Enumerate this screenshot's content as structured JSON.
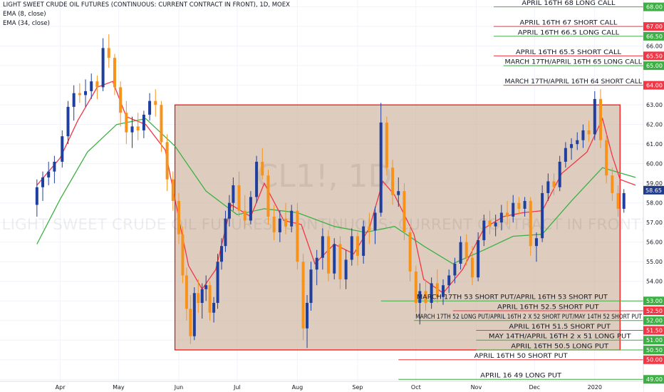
{
  "header": {
    "title": "LIGHT SWEET CRUDE OIL FUTURES (CONTINUOUS: CURRENT CONTRACT IN FRONT), 1D, MOEX",
    "ema_fast": "EMA (8, close)",
    "ema_slow": "EMA (34, close)"
  },
  "watermark": {
    "symbol": "CL1!, 1D",
    "name": "LIGHT SWEET CRUDE OIL FUTURES (CONTINUOUS: CURRENT CONTRACT IN FRONT)"
  },
  "chart_data": {
    "type": "candlestick",
    "x_labels": [
      "Apr",
      "May",
      "Jun",
      "Jul",
      "Aug",
      "Sep",
      "Oct",
      "Nov",
      "Dec",
      "2020"
    ],
    "y_ticks": [
      49.0,
      50.0,
      50.5,
      51.0,
      51.5,
      52.0,
      52.5,
      53.0,
      54.0,
      55.0,
      56.0,
      57.0,
      58.0,
      58.65,
      59.0,
      60.0,
      61.0,
      62.0,
      63.0,
      64.0,
      65.0,
      65.5,
      66.0,
      66.5,
      67.0,
      68.0
    ],
    "ylim": [
      48.9,
      68.35
    ],
    "last_price": 58.65,
    "range_box": {
      "x_start": "2019-05-30",
      "x_end": "2020-01-14",
      "y_low": 50.5,
      "y_high": 63.0
    },
    "colors": {
      "up": "#1f3f9e",
      "down": "#f7931a",
      "ema_fast": "#f23645",
      "ema_slow": "#3cb043",
      "box": "#c8b09a",
      "box_border": "#ff0000",
      "green_line": "#3cb043",
      "red_line": "#f23645"
    },
    "series": [
      {
        "name": "EMA (8, close)",
        "points": [
          [
            "2019-03-20",
            58.9
          ],
          [
            "2019-04-01",
            60.3
          ],
          [
            "2019-04-10",
            62.2
          ],
          [
            "2019-04-20",
            63.9
          ],
          [
            "2019-04-28",
            64.2
          ],
          [
            "2019-05-05",
            62.4
          ],
          [
            "2019-05-15",
            62.0
          ],
          [
            "2019-05-25",
            60.7
          ],
          [
            "2019-06-01",
            57.2
          ],
          [
            "2019-06-06",
            54.8
          ],
          [
            "2019-06-13",
            53.6
          ],
          [
            "2019-06-20",
            54.6
          ],
          [
            "2019-06-28",
            57.9
          ],
          [
            "2019-07-08",
            57.3
          ],
          [
            "2019-07-15",
            59.0
          ],
          [
            "2019-07-25",
            57.1
          ],
          [
            "2019-08-03",
            56.9
          ],
          [
            "2019-08-10",
            54.9
          ],
          [
            "2019-08-20",
            55.9
          ],
          [
            "2019-08-30",
            55.4
          ],
          [
            "2019-09-07",
            56.7
          ],
          [
            "2019-09-14",
            59.1
          ],
          [
            "2019-09-20",
            58.4
          ],
          [
            "2019-09-30",
            56.4
          ],
          [
            "2019-10-05",
            54.1
          ],
          [
            "2019-10-15",
            53.4
          ],
          [
            "2019-10-25",
            54.6
          ],
          [
            "2019-11-05",
            56.7
          ],
          [
            "2019-11-15",
            57.3
          ],
          [
            "2019-11-25",
            57.5
          ],
          [
            "2019-12-05",
            57.6
          ],
          [
            "2019-12-15",
            59.5
          ],
          [
            "2019-12-28",
            60.6
          ],
          [
            "2020-01-05",
            62.3
          ],
          [
            "2020-01-10",
            60.4
          ],
          [
            "2020-01-14",
            59.2
          ],
          [
            "2020-01-22",
            58.9
          ]
        ]
      },
      {
        "name": "EMA (34, close)",
        "points": [
          [
            "2019-03-20",
            55.9
          ],
          [
            "2019-04-01",
            58.2
          ],
          [
            "2019-04-15",
            60.6
          ],
          [
            "2019-04-30",
            62.0
          ],
          [
            "2019-05-15",
            62.3
          ],
          [
            "2019-05-30",
            60.9
          ],
          [
            "2019-06-15",
            58.6
          ],
          [
            "2019-07-01",
            57.4
          ],
          [
            "2019-07-15",
            57.7
          ],
          [
            "2019-08-01",
            57.5
          ],
          [
            "2019-08-20",
            56.8
          ],
          [
            "2019-09-05",
            56.5
          ],
          [
            "2019-09-20",
            56.8
          ],
          [
            "2019-10-05",
            55.8
          ],
          [
            "2019-10-20",
            54.9
          ],
          [
            "2019-11-05",
            55.6
          ],
          [
            "2019-11-20",
            56.3
          ],
          [
            "2019-12-05",
            56.4
          ],
          [
            "2019-12-20",
            58.1
          ],
          [
            "2020-01-05",
            59.8
          ],
          [
            "2020-01-15",
            59.5
          ],
          [
            "2020-01-22",
            59.3
          ]
        ]
      }
    ],
    "candles": [
      [
        "2019-03-20",
        57.9,
        59.2,
        57.3,
        58.8
      ],
      [
        "2019-03-23",
        58.8,
        59.6,
        58.1,
        59.3
      ],
      [
        "2019-03-26",
        59.3,
        60.1,
        58.9,
        59.6
      ],
      [
        "2019-03-29",
        59.6,
        60.4,
        59.0,
        60.1
      ],
      [
        "2019-04-02",
        60.1,
        61.7,
        59.8,
        61.4
      ],
      [
        "2019-04-05",
        61.4,
        63.2,
        61.0,
        62.9
      ],
      [
        "2019-04-08",
        62.9,
        64.0,
        62.2,
        63.6
      ],
      [
        "2019-04-11",
        63.6,
        64.1,
        63.1,
        63.5
      ],
      [
        "2019-04-14",
        63.5,
        64.3,
        62.9,
        63.7
      ],
      [
        "2019-04-17",
        63.7,
        64.6,
        63.3,
        64.2
      ],
      [
        "2019-04-20",
        64.2,
        64.5,
        63.3,
        63.9
      ],
      [
        "2019-04-23",
        63.9,
        66.4,
        63.7,
        65.9
      ],
      [
        "2019-04-26",
        65.9,
        66.6,
        64.9,
        65.4
      ],
      [
        "2019-04-29",
        65.4,
        65.6,
        63.5,
        63.9
      ],
      [
        "2019-05-02",
        63.9,
        64.2,
        61.9,
        62.6
      ],
      [
        "2019-05-05",
        62.6,
        63.2,
        61.0,
        61.6
      ],
      [
        "2019-05-08",
        61.6,
        62.4,
        60.8,
        61.9
      ],
      [
        "2019-05-11",
        61.9,
        62.6,
        61.2,
        61.7
      ],
      [
        "2019-05-14",
        61.7,
        62.7,
        61.3,
        62.5
      ],
      [
        "2019-05-17",
        62.5,
        63.6,
        62.2,
        63.2
      ],
      [
        "2019-05-20",
        63.2,
        63.8,
        62.4,
        63.0
      ],
      [
        "2019-05-23",
        63.0,
        63.2,
        60.6,
        61.1
      ],
      [
        "2019-05-26",
        61.1,
        61.5,
        58.6,
        59.2
      ],
      [
        "2019-05-29",
        59.2,
        59.6,
        57.6,
        58.1
      ],
      [
        "2019-06-01",
        58.1,
        58.5,
        55.9,
        56.4
      ],
      [
        "2019-06-03",
        56.4,
        56.8,
        53.9,
        54.3
      ],
      [
        "2019-06-05",
        54.3,
        54.7,
        52.0,
        52.6
      ],
      [
        "2019-06-07",
        52.6,
        53.3,
        50.8,
        51.2
      ],
      [
        "2019-06-09",
        51.2,
        53.7,
        51.0,
        53.4
      ],
      [
        "2019-06-11",
        53.4,
        54.1,
        52.4,
        52.9
      ],
      [
        "2019-06-13",
        52.9,
        53.9,
        52.1,
        53.6
      ],
      [
        "2019-06-15",
        53.6,
        54.3,
        53.0,
        53.8
      ],
      [
        "2019-06-17",
        53.8,
        54.0,
        52.0,
        52.4
      ],
      [
        "2019-06-19",
        52.4,
        53.2,
        51.9,
        52.9
      ],
      [
        "2019-06-21",
        52.9,
        55.4,
        52.6,
        55.0
      ],
      [
        "2019-06-23",
        55.0,
        56.2,
        54.6,
        55.8
      ],
      [
        "2019-06-25",
        55.8,
        57.6,
        55.5,
        57.2
      ],
      [
        "2019-06-27",
        57.2,
        58.4,
        56.8,
        58.0
      ],
      [
        "2019-06-29",
        58.0,
        59.3,
        57.6,
        58.9
      ],
      [
        "2019-07-02",
        58.9,
        59.6,
        57.3,
        57.6
      ],
      [
        "2019-07-05",
        57.6,
        58.4,
        56.7,
        57.1
      ],
      [
        "2019-07-08",
        57.1,
        58.6,
        56.9,
        58.3
      ],
      [
        "2019-07-11",
        58.3,
        60.4,
        58.0,
        60.1
      ],
      [
        "2019-07-14",
        60.1,
        60.8,
        59.2,
        59.4
      ],
      [
        "2019-07-17",
        59.4,
        59.7,
        56.9,
        57.3
      ],
      [
        "2019-07-20",
        57.3,
        57.9,
        56.1,
        56.5
      ],
      [
        "2019-07-23",
        56.5,
        57.6,
        56.0,
        57.2
      ],
      [
        "2019-07-26",
        57.2,
        58.0,
        56.4,
        56.8
      ],
      [
        "2019-07-29",
        56.8,
        57.9,
        56.5,
        57.6
      ],
      [
        "2019-08-01",
        57.6,
        58.0,
        54.6,
        55.0
      ],
      [
        "2019-08-04",
        55.0,
        55.4,
        51.0,
        51.6
      ],
      [
        "2019-08-06",
        51.6,
        53.3,
        50.6,
        52.9
      ],
      [
        "2019-08-08",
        52.9,
        55.0,
        52.5,
        54.6
      ],
      [
        "2019-08-11",
        54.6,
        55.6,
        53.8,
        55.2
      ],
      [
        "2019-08-14",
        55.2,
        56.7,
        54.6,
        56.3
      ],
      [
        "2019-08-17",
        56.3,
        56.6,
        54.0,
        54.4
      ],
      [
        "2019-08-20",
        54.4,
        56.2,
        54.1,
        55.9
      ],
      [
        "2019-08-23",
        55.9,
        56.3,
        53.6,
        54.1
      ],
      [
        "2019-08-26",
        54.1,
        55.6,
        53.6,
        55.1
      ],
      [
        "2019-08-29",
        55.1,
        56.7,
        54.8,
        56.3
      ],
      [
        "2019-09-01",
        56.3,
        56.5,
        54.8,
        55.3
      ],
      [
        "2019-09-04",
        55.3,
        57.1,
        54.9,
        56.8
      ],
      [
        "2019-09-07",
        56.8,
        57.5,
        55.9,
        56.6
      ],
      [
        "2019-09-10",
        56.6,
        57.8,
        55.9,
        57.5
      ],
      [
        "2019-09-13",
        57.5,
        63.1,
        57.3,
        62.1
      ],
      [
        "2019-09-16",
        62.1,
        62.4,
        59.4,
        59.8
      ],
      [
        "2019-09-19",
        59.8,
        60.2,
        57.9,
        58.4
      ],
      [
        "2019-09-22",
        58.4,
        59.3,
        57.8,
        58.6
      ],
      [
        "2019-09-25",
        58.6,
        59.0,
        56.1,
        56.5
      ],
      [
        "2019-09-28",
        56.5,
        56.9,
        54.0,
        54.5
      ],
      [
        "2019-10-01",
        54.5,
        54.8,
        52.4,
        52.9
      ],
      [
        "2019-10-03",
        52.9,
        53.9,
        51.8,
        53.5
      ],
      [
        "2019-10-06",
        53.5,
        54.1,
        52.5,
        52.9
      ],
      [
        "2019-10-09",
        52.9,
        54.2,
        52.6,
        53.9
      ],
      [
        "2019-10-12",
        53.9,
        54.6,
        52.9,
        53.2
      ],
      [
        "2019-10-15",
        53.2,
        54.1,
        52.8,
        53.8
      ],
      [
        "2019-10-18",
        53.8,
        54.6,
        53.4,
        54.3
      ],
      [
        "2019-10-21",
        54.3,
        55.2,
        53.9,
        54.9
      ],
      [
        "2019-10-24",
        54.9,
        56.3,
        54.6,
        56.0
      ],
      [
        "2019-10-27",
        56.0,
        56.4,
        54.8,
        55.2
      ],
      [
        "2019-10-30",
        55.2,
        55.8,
        53.8,
        54.2
      ],
      [
        "2019-11-02",
        54.2,
        56.5,
        54.0,
        56.1
      ],
      [
        "2019-11-05",
        56.1,
        57.4,
        55.8,
        57.1
      ],
      [
        "2019-11-08",
        57.1,
        57.6,
        56.4,
        56.8
      ],
      [
        "2019-11-11",
        56.8,
        57.4,
        56.3,
        57.0
      ],
      [
        "2019-11-14",
        57.0,
        57.9,
        56.6,
        57.5
      ],
      [
        "2019-11-17",
        57.5,
        58.1,
        56.9,
        57.3
      ],
      [
        "2019-11-20",
        57.3,
        58.4,
        57.0,
        58.0
      ],
      [
        "2019-11-23",
        58.0,
        58.3,
        57.4,
        57.7
      ],
      [
        "2019-11-26",
        57.7,
        58.3,
        57.3,
        58.1
      ],
      [
        "2019-11-29",
        58.1,
        58.3,
        55.3,
        55.8
      ],
      [
        "2019-12-02",
        55.8,
        56.5,
        55.0,
        56.2
      ],
      [
        "2019-12-05",
        56.2,
        58.9,
        56.0,
        58.5
      ],
      [
        "2019-12-08",
        58.5,
        59.5,
        58.1,
        59.1
      ],
      [
        "2019-12-11",
        59.1,
        59.5,
        58.4,
        58.8
      ],
      [
        "2019-12-14",
        58.8,
        60.4,
        58.6,
        60.1
      ],
      [
        "2019-12-17",
        60.1,
        61.1,
        59.8,
        60.8
      ],
      [
        "2019-12-20",
        60.8,
        61.3,
        60.2,
        61.0
      ],
      [
        "2019-12-23",
        61.0,
        61.6,
        60.7,
        61.2
      ],
      [
        "2019-12-26",
        61.2,
        62.0,
        60.8,
        61.7
      ],
      [
        "2019-12-29",
        61.7,
        62.2,
        61.1,
        61.5
      ],
      [
        "2020-01-01",
        61.5,
        63.7,
        61.2,
        63.3
      ],
      [
        "2020-01-04",
        63.3,
        63.8,
        60.8,
        61.2
      ],
      [
        "2020-01-07",
        61.2,
        61.5,
        59.0,
        59.4
      ],
      [
        "2020-01-10",
        59.4,
        59.8,
        58.1,
        58.5
      ],
      [
        "2020-01-13",
        58.5,
        58.9,
        57.3,
        57.7
      ],
      [
        "2020-01-16",
        57.7,
        58.7,
        57.5,
        58.5
      ]
    ],
    "annotations": [
      {
        "text": "APRIL 16TH 68 LONG CALL",
        "y": 68.0,
        "x_start": "2019-11-10",
        "color": "green"
      },
      {
        "text": "APRIL 16TH 67 SHORT CALL",
        "y": 67.0,
        "x_start": "2019-11-10",
        "color": "red"
      },
      {
        "text": "APRIL 16TH 66.5 LONG CALL",
        "y": 66.5,
        "x_start": "2019-11-10",
        "color": "green"
      },
      {
        "text": "APRIL 16TH 65.5 SHORT CALL",
        "y": 65.5,
        "x_start": "2019-11-10",
        "color": "red"
      },
      {
        "text": "MARCH 17TH/APRIL 16TH 65 LONG CALL",
        "y": 65.0,
        "x_start": "2019-11-15",
        "color": "green"
      },
      {
        "text": "MARCH 17TH/APRIL 16TH 64 SHORT CALL",
        "y": 64.0,
        "x_start": "2019-11-15",
        "color": "red"
      },
      {
        "text": "MARCH 17TH 53 SHORT PUT/APRIL 16TH 53 SHORT PUT",
        "y": 53.0,
        "x_start": "2019-09-13",
        "color": "green"
      },
      {
        "text": "APRIL 16TH 52.5 SHORT PUT",
        "y": 52.5,
        "x_start": "2019-10-20",
        "color": "red"
      },
      {
        "text": "MARCH 17TH 52 LONG PUT/APRIL 16TH 2 X 52 SHORT PUT/MAY 14TH 52 SHORT PUT",
        "y": 52.0,
        "x_start": "2019-09-30",
        "color": "green"
      },
      {
        "text": "APRIL 16TH 51.5 SHORT PUT",
        "y": 51.5,
        "x_start": "2019-11-01",
        "color": "red"
      },
      {
        "text": "MAY 14TH/APRIL 16TH 2 x 51 LONG PUT",
        "y": 51.0,
        "x_start": "2019-11-01",
        "color": "green"
      },
      {
        "text": "APRIL 16TH 50.5 LONG PUT",
        "y": 50.5,
        "x_start": "2019-11-01",
        "color": "green"
      },
      {
        "text": "APRIL 16TH 50 SHORT PUT",
        "y": 50.0,
        "x_start": "2019-09-22",
        "color": "red"
      },
      {
        "text": "APRIL 16 49 LONG PUT",
        "y": 49.0,
        "x_start": "2019-09-22",
        "color": "green"
      }
    ]
  }
}
